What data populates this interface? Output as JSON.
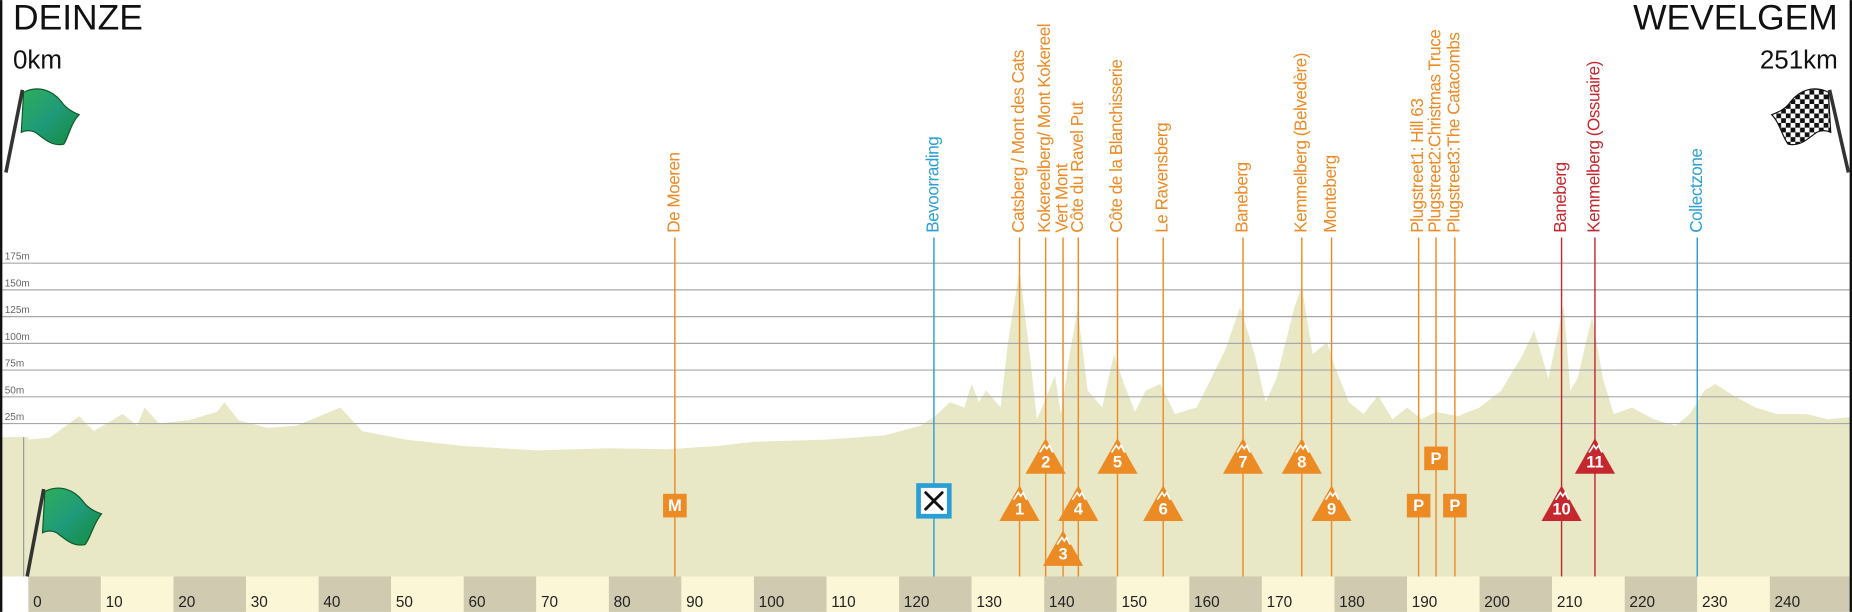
{
  "chart_data": {
    "type": "area",
    "start": {
      "name": "DEINZE",
      "distance": "0km"
    },
    "finish": {
      "name": "WEVELGEM",
      "distance": "251km"
    },
    "x": [
      0,
      3,
      7,
      9,
      13,
      15,
      16,
      18,
      22,
      26,
      27,
      29,
      33,
      37,
      43,
      46,
      52,
      60,
      70,
      80,
      88,
      95,
      100,
      110,
      118,
      123,
      125,
      127,
      129,
      130,
      131,
      132,
      134,
      135,
      136.6,
      138,
      139,
      140,
      141.5,
      142.3,
      143.5,
      144.6,
      146,
      148,
      149.6,
      151,
      152.5,
      154,
      156,
      158,
      161,
      163,
      165,
      167,
      169,
      170.5,
      172,
      174.5,
      175.5,
      177,
      179,
      180,
      182,
      184,
      186,
      188,
      190,
      192,
      194,
      197,
      200,
      203,
      206,
      207.5,
      208.5,
      209.5,
      211.6,
      212.5,
      213.5,
      215.5,
      217,
      218.5,
      221,
      224,
      227,
      229,
      231,
      232.5,
      235,
      238,
      241,
      245,
      248,
      251
    ],
    "values": [
      10,
      12,
      32,
      18,
      34,
      23,
      40,
      25,
      28,
      36,
      45,
      28,
      21,
      23,
      40,
      18,
      10,
      4,
      0,
      2,
      1,
      4,
      8,
      10,
      14,
      23,
      32,
      45,
      40,
      62,
      45,
      56,
      40,
      101,
      169,
      90,
      29,
      45,
      70,
      34,
      90,
      132,
      56,
      40,
      90,
      62,
      36,
      56,
      62,
      34,
      40,
      67,
      95,
      134,
      90,
      45,
      67,
      134,
      153,
      90,
      101,
      79,
      45,
      34,
      51,
      29,
      40,
      29,
      36,
      32,
      40,
      56,
      90,
      112,
      90,
      67,
      136,
      56,
      67,
      125,
      67,
      34,
      40,
      29,
      23,
      34,
      56,
      62,
      51,
      40,
      34,
      34,
      29,
      31
    ],
    "color": "#e8e8c6",
    "xlim": [
      0,
      251
    ],
    "xticks": [
      0,
      10,
      20,
      30,
      40,
      50,
      60,
      70,
      80,
      90,
      100,
      110,
      120,
      130,
      140,
      150,
      160,
      170,
      180,
      190,
      200,
      210,
      220,
      230,
      240
    ],
    "ylim": [
      -118,
      421
    ],
    "yticks": [
      {
        "value": 25,
        "label": "25m"
      },
      {
        "value": 50,
        "label": "50m"
      },
      {
        "value": 75,
        "label": "75m"
      },
      {
        "value": 100,
        "label": "100m"
      },
      {
        "value": 125,
        "label": "125m"
      },
      {
        "value": 150,
        "label": "150m"
      },
      {
        "value": 175,
        "label": "175m"
      }
    ],
    "grid": true,
    "annotations": [
      {
        "label": "De Moeren",
        "x": 89.1,
        "marker": "M",
        "shape": "square",
        "color": "#ec8a24"
      },
      {
        "label": "Bevoorrading",
        "x": 124.8,
        "shape": "icon",
        "color": "#2a9fd6"
      },
      {
        "label": "Catsberg / Mont des Cats",
        "x": 136.6,
        "marker": "1",
        "shape": "triangle",
        "color": "#ec8a24"
      },
      {
        "label": "Kokereelberg/ Mont Kokereel",
        "x": 140.2,
        "marker": "2",
        "shape": "triangle",
        "color": "#ec8a24"
      },
      {
        "label": "Vert Mont",
        "x": 142.6,
        "marker": "3",
        "shape": "triangle",
        "color": "#ec8a24"
      },
      {
        "label": "Côte du Ravel Put",
        "x": 144.7,
        "marker": "4",
        "shape": "triangle",
        "color": "#ec8a24"
      },
      {
        "label": "Côte de la Blanchisserie",
        "x": 150.1,
        "marker": "5",
        "shape": "triangle",
        "color": "#ec8a24"
      },
      {
        "label": "Le Ravensberg",
        "x": 156.4,
        "marker": "6",
        "shape": "triangle",
        "color": "#ec8a24"
      },
      {
        "label": "Baneberg",
        "x": 167.4,
        "marker": "7",
        "shape": "triangle",
        "color": "#ec8a24"
      },
      {
        "label": "Kemmelberg (Belvedère)",
        "x": 175.5,
        "marker": "8",
        "shape": "triangle",
        "color": "#ec8a24"
      },
      {
        "label": "Monteberg",
        "x": 179.6,
        "marker": "9",
        "shape": "triangle",
        "color": "#ec8a24"
      },
      {
        "label": "Plugstreet1: Hill 63",
        "x": 191.6,
        "marker": "P",
        "shape": "square",
        "color": "#ec8a24"
      },
      {
        "label": "Plugstreet2:Christmas Truce",
        "x": 194.0,
        "marker": "P",
        "shape": "square",
        "color": "#ec8a24"
      },
      {
        "label": "Plugstreet3:The Catacombs",
        "x": 196.6,
        "marker": "P",
        "shape": "square",
        "color": "#ec8a24"
      },
      {
        "label": "Baneberg",
        "x": 211.3,
        "marker": "10",
        "shape": "triangle",
        "color": "#c4282e"
      },
      {
        "label": "Kemmelberg (Ossuaire)",
        "x": 215.9,
        "marker": "11",
        "shape": "triangle",
        "color": "#c4282e"
      },
      {
        "label": "Collectzone",
        "x": 230.0,
        "color": "#2a9fd6"
      }
    ]
  }
}
